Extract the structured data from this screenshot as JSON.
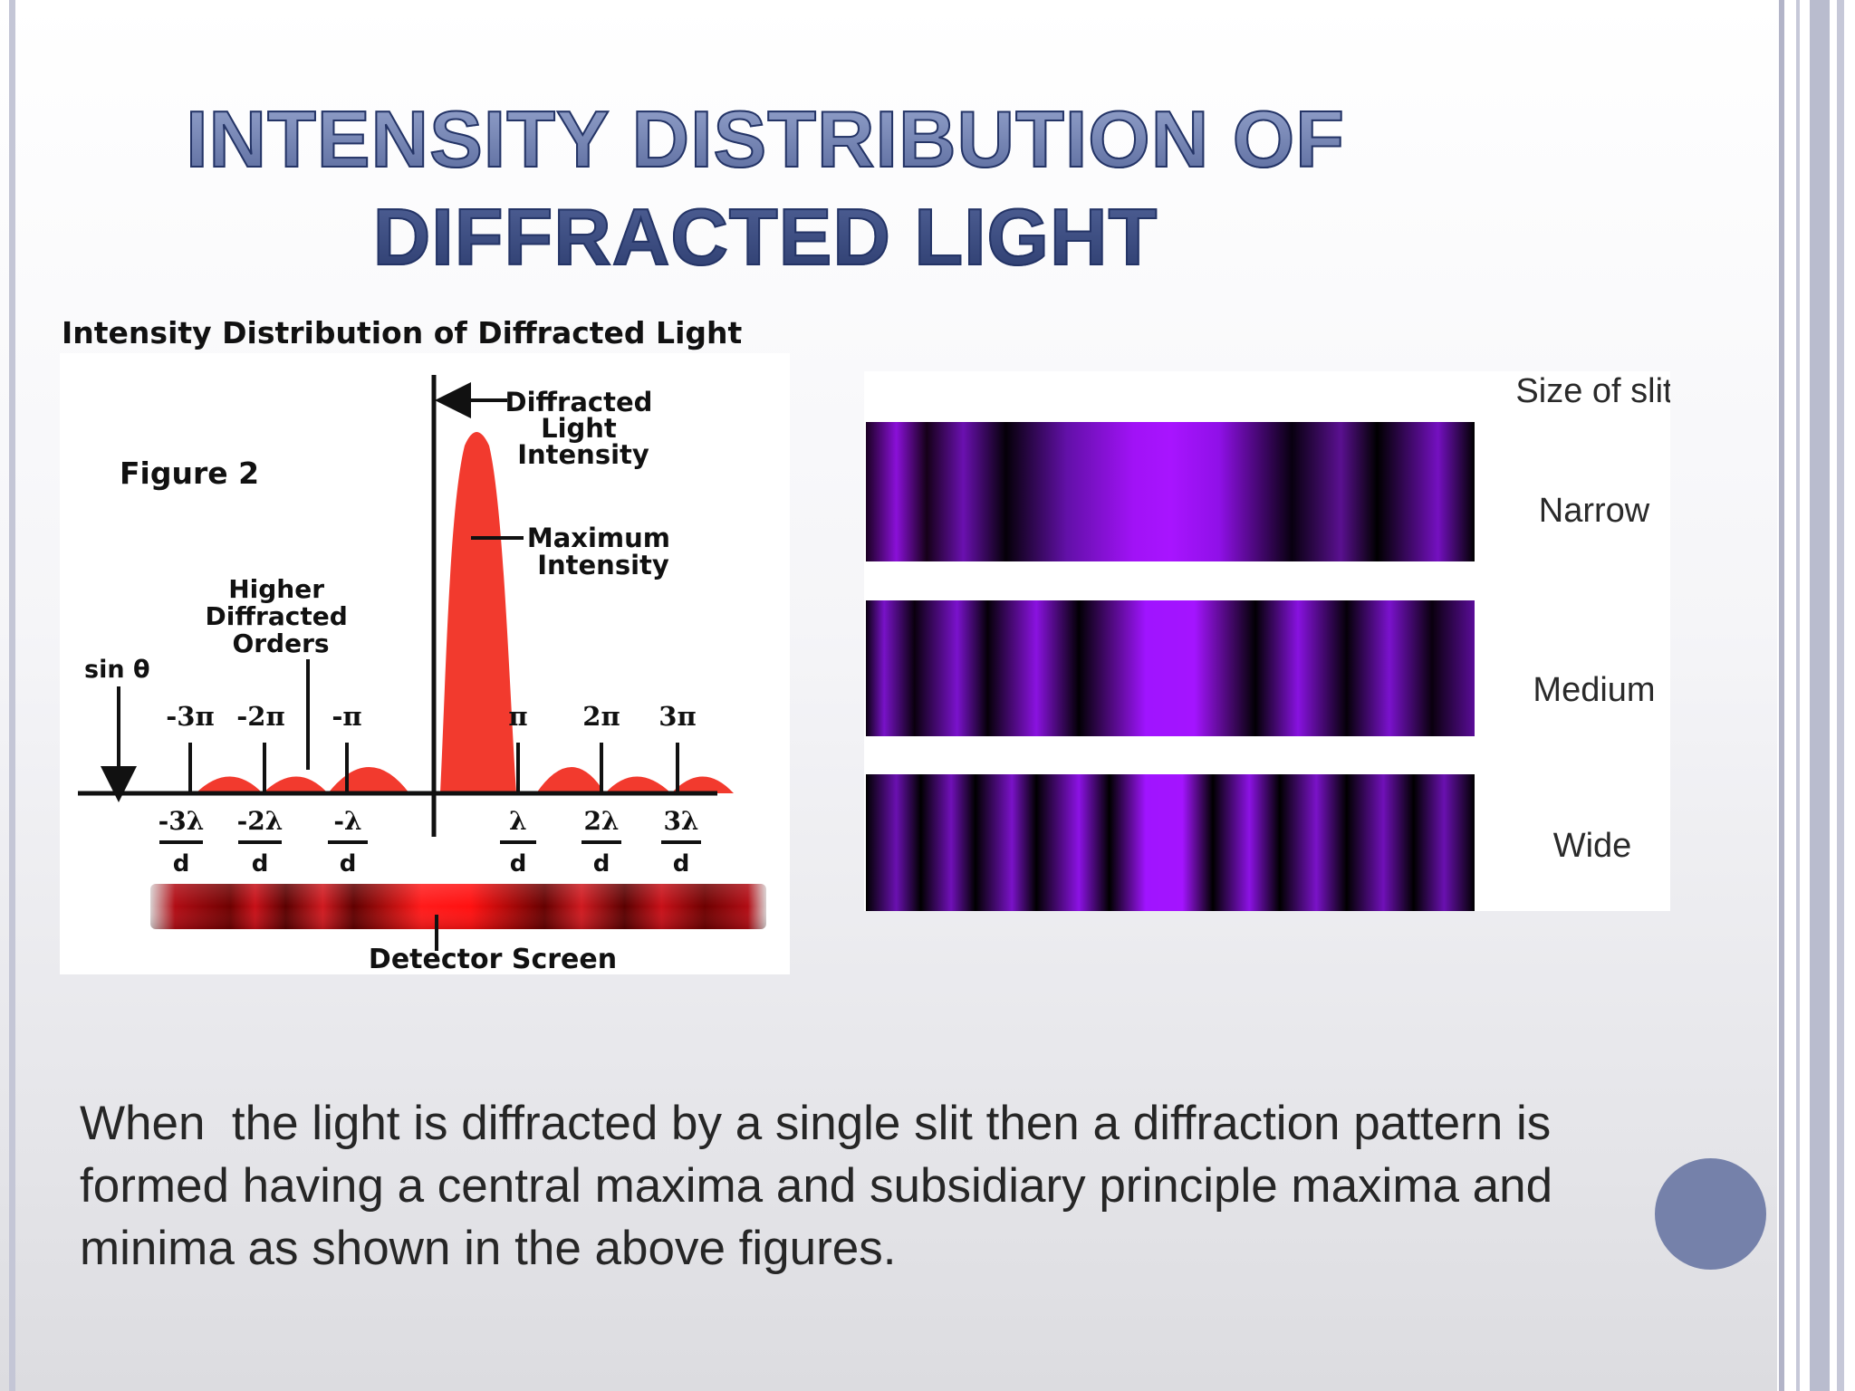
{
  "slide": {
    "title_line1": "INTENSITY DISTRIBUTION OF",
    "title_line2": "DIFFRACTED LIGHT",
    "caption": "When  the light is diffracted by a single slit then a diffraction pattern is formed having a central maxima and subsidiary principle maxima and minima as shown in the above figures.",
    "accent_color": "#7581aa",
    "title_color": "#3a4a7c"
  },
  "left_figure": {
    "heading": "Intensity Distribution of Diffracted Light",
    "figure_label": "Figure 2",
    "peak_label": [
      "Diffracted",
      "Light",
      "Intensity"
    ],
    "maximum_label": [
      "Maximum",
      "Intensity"
    ],
    "higher_label": [
      "Higher",
      "Diffracted",
      "Orders"
    ],
    "sin_label": "sin θ",
    "phase_ticks": [
      "-3π",
      "-2π",
      "-π",
      "π",
      "2π",
      "3π"
    ],
    "numerators": [
      "-3λ",
      "-2λ",
      "-λ",
      "λ",
      "2λ",
      "3λ"
    ],
    "denominator": "d",
    "screen_label": "Detector Screen",
    "curve_color": "#f23a2e"
  },
  "right_figure": {
    "header": "Size of slit",
    "strips": [
      {
        "label": "Narrow"
      },
      {
        "label": "Medium"
      },
      {
        "label": "Wide"
      }
    ],
    "band_color": "#9b10f0"
  }
}
